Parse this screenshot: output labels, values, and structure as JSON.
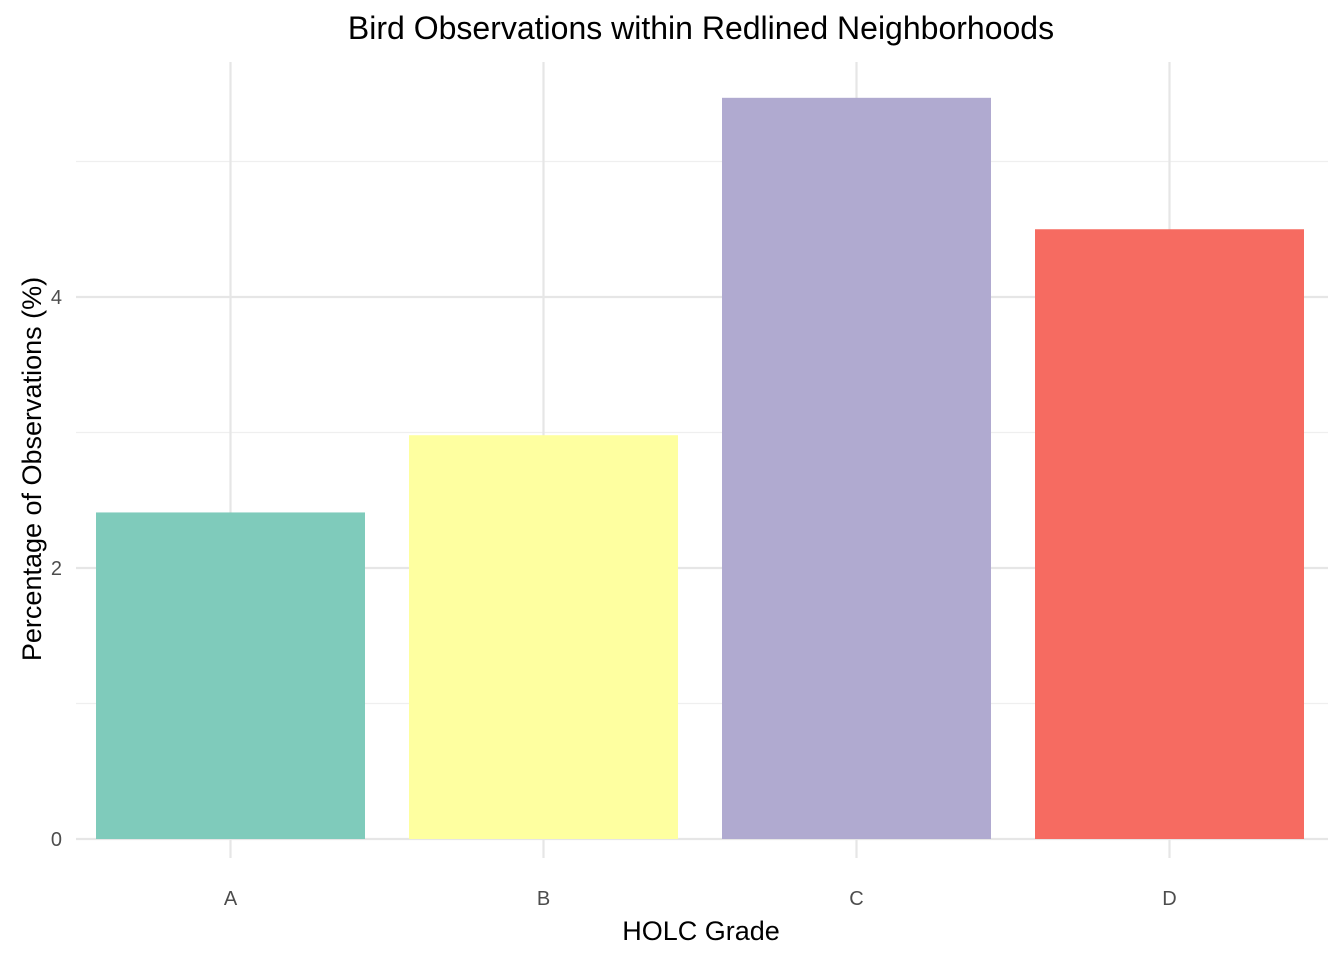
{
  "chart_data": {
    "type": "bar",
    "title": "Bird Observations within Redlined Neighborhoods",
    "xlabel": "HOLC Grade",
    "ylabel": "Percentage of Observations (%)",
    "categories": [
      "A",
      "B",
      "C",
      "D"
    ],
    "values": [
      2.41,
      2.98,
      5.47,
      4.5
    ],
    "colors": [
      "#7fcbbb",
      "#feffa0",
      "#b0aad0",
      "#f66b61"
    ],
    "ylim": [
      0,
      5.8
    ],
    "yticks": [
      0,
      2,
      4
    ],
    "yticks_minor": [
      1,
      3,
      5
    ],
    "grid": true,
    "legend": "none"
  }
}
